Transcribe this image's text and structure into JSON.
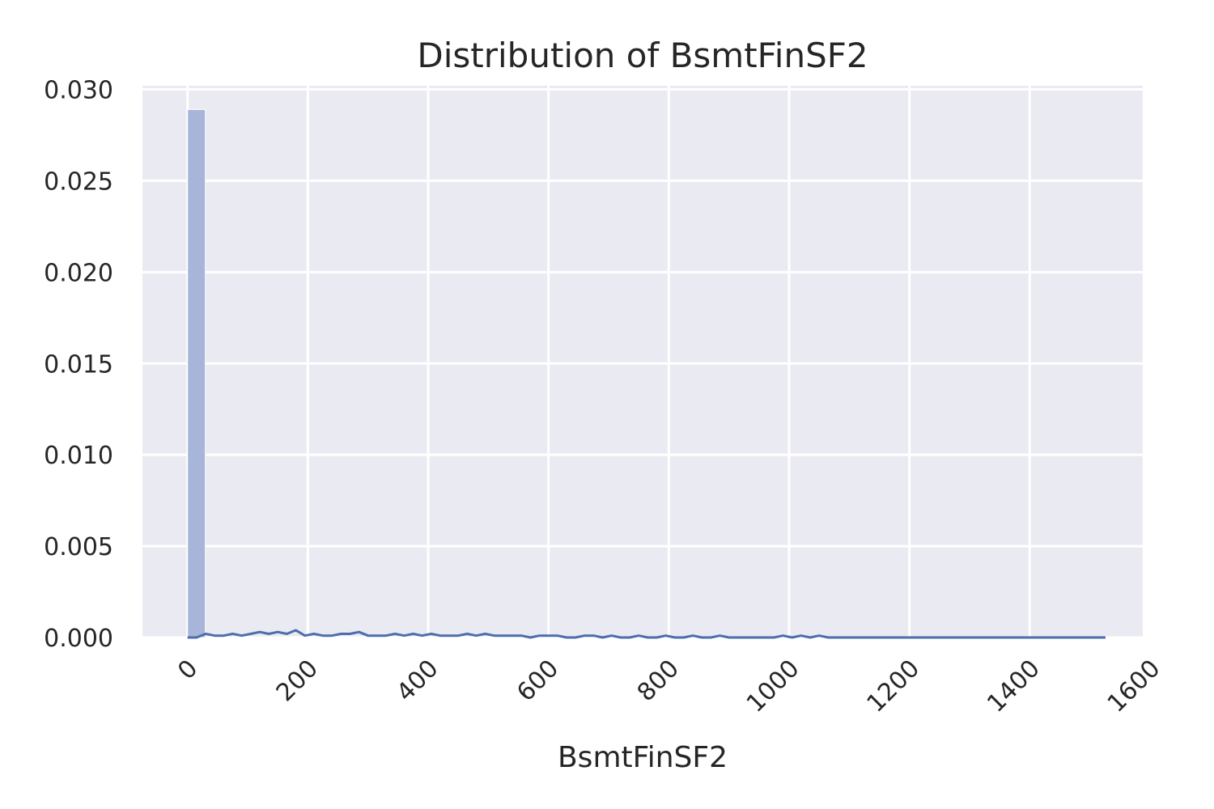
{
  "chart_data": {
    "type": "bar",
    "title": "Distribution of BsmtFinSF2",
    "xlabel": "BsmtFinSF2",
    "ylabel": "",
    "xlim": [
      -75,
      1588
    ],
    "ylim": [
      0,
      0.0302
    ],
    "xticks": [
      0,
      200,
      400,
      600,
      800,
      1000,
      1200,
      1400,
      1600
    ],
    "xtick_labels": [
      "0",
      "200",
      "400",
      "600",
      "800",
      "1000",
      "1200",
      "1400",
      "1600"
    ],
    "yticks": [
      0,
      0.005,
      0.01,
      0.015,
      0.02,
      0.025,
      0.03
    ],
    "ytick_labels": [
      "0.000",
      "0.005",
      "0.010",
      "0.015",
      "0.020",
      "0.025",
      "0.030"
    ],
    "grid": true,
    "colors": {
      "background": "#eaeaf2",
      "grid": "#ffffff",
      "bar": "#a7b5d8",
      "line": "#4c6ead",
      "text": "#262626"
    },
    "histogram": {
      "bin_width": 29.5,
      "bins": [
        {
          "x0": 0,
          "x1": 29.5,
          "density": 0.0289
        }
      ]
    },
    "density_line": {
      "x": [
        0,
        15,
        30,
        45,
        60,
        75,
        90,
        105,
        120,
        135,
        150,
        165,
        180,
        195,
        210,
        225,
        240,
        255,
        270,
        285,
        300,
        315,
        330,
        345,
        360,
        375,
        390,
        405,
        420,
        435,
        450,
        465,
        480,
        495,
        510,
        525,
        540,
        555,
        570,
        585,
        600,
        615,
        630,
        645,
        660,
        675,
        690,
        705,
        720,
        735,
        750,
        765,
        780,
        795,
        810,
        825,
        840,
        855,
        870,
        885,
        900,
        915,
        930,
        945,
        960,
        975,
        990,
        1005,
        1020,
        1035,
        1050,
        1065,
        1080,
        1095,
        1110,
        1125,
        1140,
        1155,
        1170,
        1185,
        1200,
        1215,
        1230,
        1245,
        1260,
        1275,
        1290,
        1305,
        1320,
        1335,
        1350,
        1365,
        1380,
        1395,
        1410,
        1425,
        1440,
        1455,
        1470,
        1485,
        1500,
        1526
      ],
      "y": [
        0,
        0,
        0.0002,
        0.0001,
        0.0001,
        0.0002,
        0.0001,
        0.0002,
        0.0003,
        0.0002,
        0.0003,
        0.0002,
        0.0004,
        0.0001,
        0.0002,
        0.0001,
        0.0001,
        0.0002,
        0.0002,
        0.0003,
        0.0001,
        0.0001,
        0.0001,
        0.0002,
        0.0001,
        0.0002,
        0.0001,
        0.0002,
        0.0001,
        0.0001,
        0.0001,
        0.0002,
        0.0001,
        0.0002,
        0.0001,
        0.0001,
        0.0001,
        0.0001,
        0.0,
        0.0001,
        0.0001,
        0.0001,
        0.0,
        0.0,
        0.0001,
        0.0001,
        0.0,
        0.0001,
        0.0,
        0.0,
        0.0001,
        0.0,
        0.0,
        0.0001,
        0.0,
        0.0,
        0.0001,
        0.0,
        0.0,
        0.0001,
        0.0,
        0.0,
        0.0,
        0.0,
        0.0,
        0.0,
        0.0001,
        0.0,
        0.0001,
        0.0,
        0.0001,
        0.0,
        0.0,
        0.0,
        0.0,
        0.0,
        0.0,
        0.0,
        0.0,
        0.0,
        0.0,
        0.0,
        0.0,
        0.0,
        0.0,
        0.0,
        0.0,
        0.0,
        0.0,
        0.0,
        0.0,
        0.0,
        0.0,
        0.0,
        0.0,
        0.0,
        0.0,
        0.0,
        0.0,
        0.0,
        0.0,
        0.0
      ]
    }
  }
}
